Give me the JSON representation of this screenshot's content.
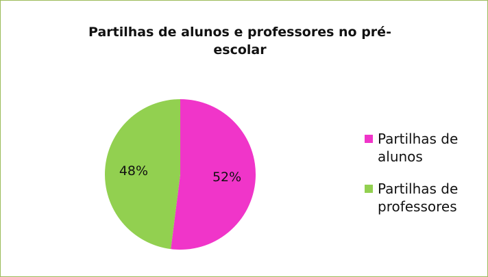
{
  "chart_data": {
    "type": "pie",
    "title": "Partilhas de alunos e professores no pré-escolar",
    "categories": [
      "Partilhas de alunos",
      "Partilhas de professores"
    ],
    "values": [
      52,
      48
    ],
    "value_labels": [
      "52%",
      "48%"
    ],
    "colors": [
      "#f035c9",
      "#92d050"
    ],
    "legend": "right"
  }
}
